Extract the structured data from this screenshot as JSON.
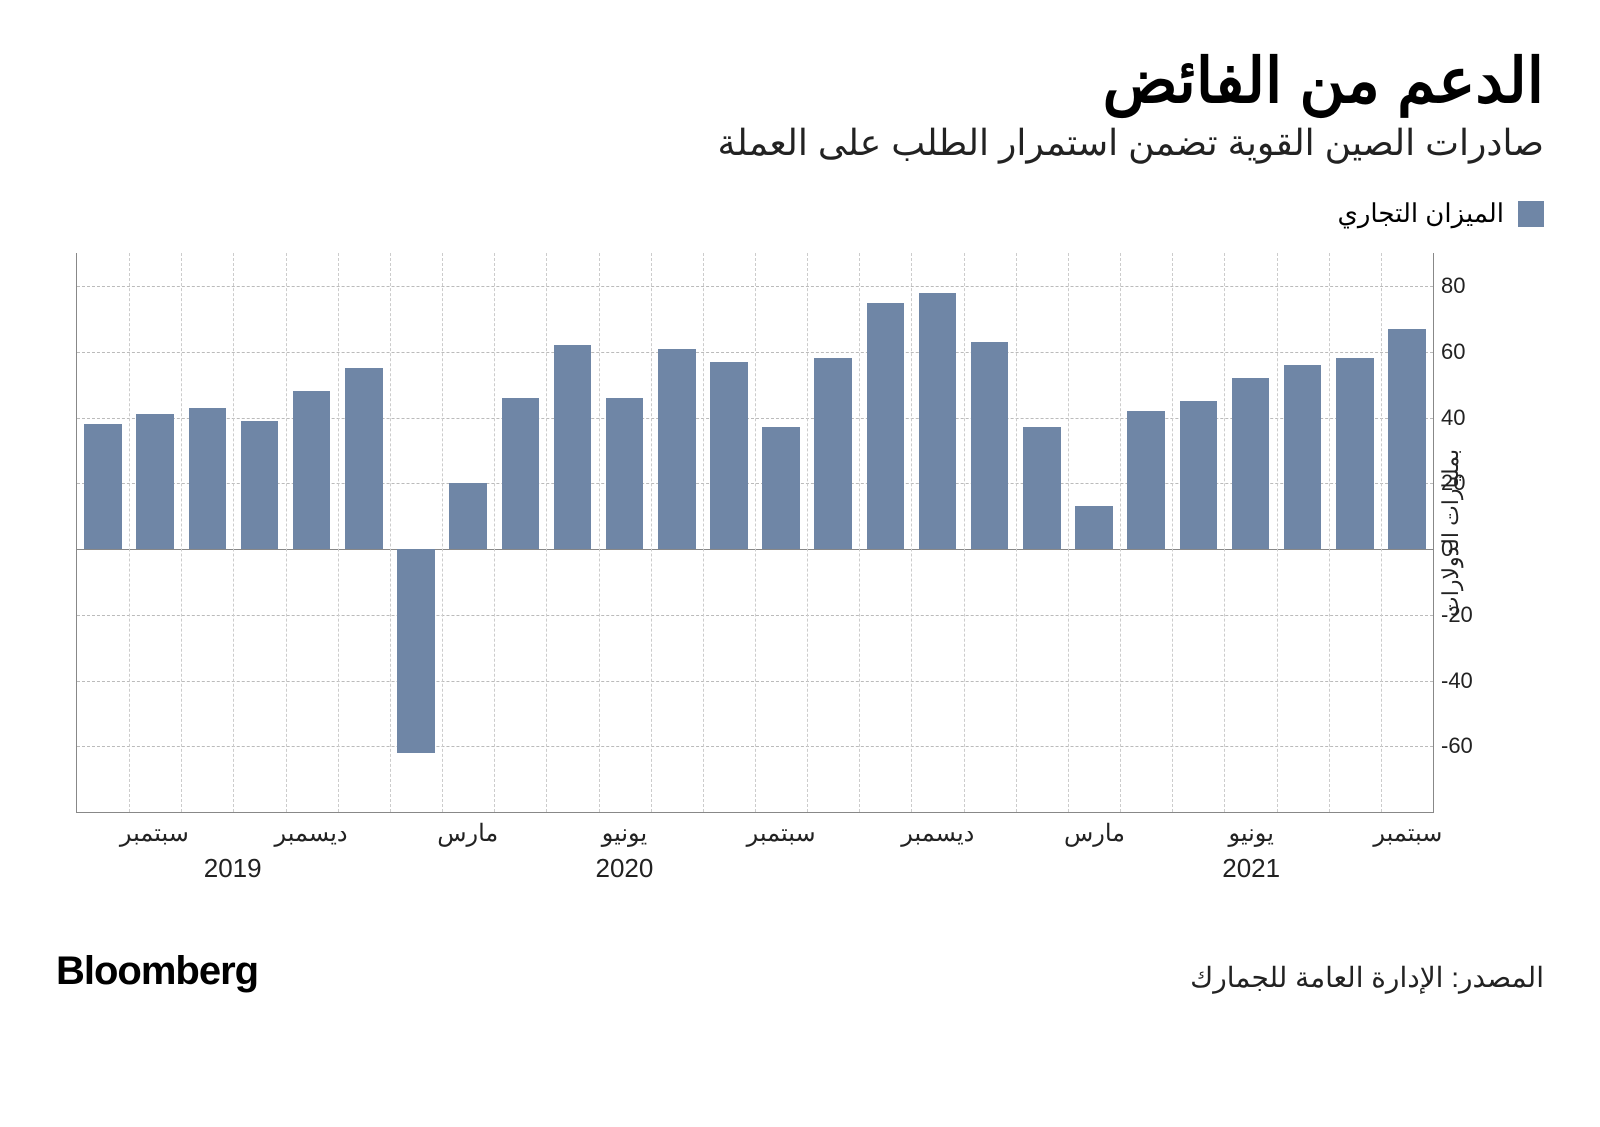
{
  "title": "الدعم من الفائض",
  "subtitle": "صادرات الصين القوية تضمن استمرار الطلب على العملة",
  "legend": {
    "label": "الميزان التجاري",
    "swatch_color": "#6f86a6"
  },
  "chart": {
    "type": "bar",
    "bar_color": "#6f86a6",
    "background_color": "#ffffff",
    "grid_color": "#bbbbbb",
    "axis_color": "#888888",
    "y": {
      "min": -80,
      "max": 90,
      "ticks": [
        -60,
        -40,
        -20,
        0,
        20,
        40,
        60,
        80
      ],
      "label": "بمليارات الدولارات"
    },
    "values": [
      38,
      41,
      43,
      39,
      48,
      55,
      -62,
      20,
      46,
      62,
      46,
      61,
      57,
      37,
      58,
      75,
      78,
      63,
      37,
      13,
      42,
      45,
      52,
      56,
      58,
      67
    ],
    "x_month_ticks": [
      {
        "index": 1,
        "label": "سبتمبر"
      },
      {
        "index": 4,
        "label": "ديسمبر"
      },
      {
        "index": 7,
        "label": "مارس"
      },
      {
        "index": 10,
        "label": "يونيو"
      },
      {
        "index": 13,
        "label": "سبتمبر"
      },
      {
        "index": 16,
        "label": "ديسمبر"
      },
      {
        "index": 19,
        "label": "مارس"
      },
      {
        "index": 22,
        "label": "يونيو"
      },
      {
        "index": 25,
        "label": "سبتمبر"
      }
    ],
    "x_year_ticks": [
      {
        "index": 2.5,
        "label": "2019"
      },
      {
        "index": 10,
        "label": "2020"
      },
      {
        "index": 22,
        "label": "2021"
      }
    ],
    "bar_width_ratio": 0.72,
    "title_fontsize": 62,
    "subtitle_fontsize": 36,
    "tick_fontsize": 22
  },
  "source": "المصدر: الإدارة العامة للجمارك",
  "brand": "Bloomberg"
}
